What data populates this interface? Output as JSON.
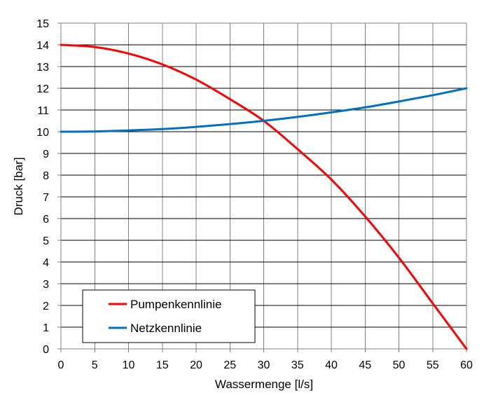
{
  "chart_data": {
    "type": "line",
    "title": "",
    "xlabel": "Wassermenge [l/s]",
    "ylabel": "Druck [bar]",
    "xlim": [
      0,
      60
    ],
    "ylim": [
      0,
      15
    ],
    "xticks": [
      0,
      5,
      10,
      15,
      20,
      25,
      30,
      35,
      40,
      45,
      50,
      55,
      60
    ],
    "yticks": [
      0,
      1,
      2,
      3,
      4,
      5,
      6,
      7,
      8,
      9,
      10,
      11,
      12,
      13,
      14,
      15
    ],
    "grid": true,
    "legend_position": "bottom-left",
    "series": [
      {
        "name": "Pumpenkennlinie",
        "color": "#FF0000",
        "x": [
          0,
          5,
          10,
          15,
          20,
          25,
          30,
          35,
          40,
          45,
          50,
          55,
          60
        ],
        "y": [
          14.0,
          13.9,
          13.6,
          13.1,
          12.4,
          11.5,
          10.5,
          9.2,
          7.8,
          6.1,
          4.2,
          2.1,
          0.0
        ]
      },
      {
        "name": "Netzkennlinie",
        "color": "#0070C0",
        "x": [
          0,
          5,
          10,
          15,
          20,
          25,
          30,
          35,
          40,
          45,
          50,
          55,
          60
        ],
        "y": [
          10.0,
          10.01,
          10.06,
          10.12,
          10.22,
          10.35,
          10.5,
          10.68,
          10.89,
          11.12,
          11.39,
          11.68,
          12.0
        ]
      }
    ]
  }
}
